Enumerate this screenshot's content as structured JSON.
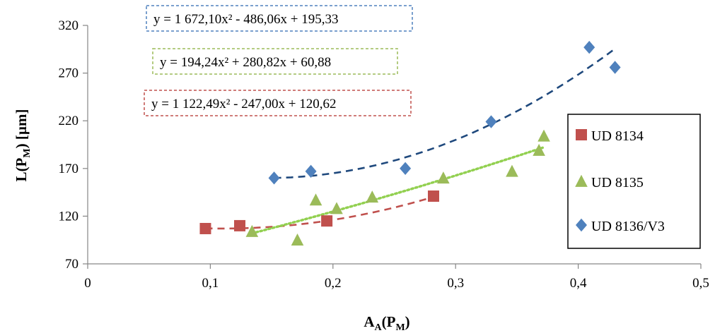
{
  "chart_data": {
    "type": "scatter",
    "xlabel": "AA(PM)",
    "ylabel": "L(PM) [µm]",
    "xlim": [
      0,
      0.5
    ],
    "ylim": [
      70,
      320
    ],
    "xticks": [
      0,
      0.1,
      0.2,
      0.3,
      0.4,
      0.5
    ],
    "xtick_labels": [
      "0",
      "0,1",
      "0,2",
      "0,3",
      "0,4",
      "0,5"
    ],
    "yticks": [
      70,
      120,
      170,
      220,
      270,
      320
    ],
    "ytick_labels": [
      "70",
      "120",
      "170",
      "220",
      "270",
      "320"
    ],
    "grid": false,
    "legend_position": "right",
    "series": [
      {
        "name": "UD 8134",
        "marker": "square",
        "color": "#c0504d",
        "trend_color": "#c0504d",
        "trend_style": "dashed",
        "x": [
          0.096,
          0.124,
          0.195,
          0.282
        ],
        "y": [
          107,
          110,
          115,
          141
        ],
        "trend": {
          "a": 1122.49,
          "b": -247.0,
          "c": 120.62,
          "x_range": [
            0.096,
            0.282
          ]
        },
        "equation": "y = 1 122,49x² - 247,00x + 120,62"
      },
      {
        "name": "UD 8135",
        "marker": "triangle",
        "color": "#9bbb59",
        "trend_color": "#92d050",
        "trend_style": "dotted",
        "x": [
          0.134,
          0.171,
          0.186,
          0.203,
          0.232,
          0.29,
          0.346,
          0.368,
          0.372
        ],
        "y": [
          104,
          95,
          137,
          128,
          140,
          160,
          167,
          189,
          204
        ],
        "trend": {
          "a": 194.24,
          "b": 280.82,
          "c": 60.88,
          "x_range": [
            0.134,
            0.372
          ]
        },
        "equation": "y = 194,24x² + 280,82x + 60,88"
      },
      {
        "name": "UD 8136/V3",
        "marker": "diamond",
        "color": "#4f81bd",
        "trend_color": "#1f497d",
        "trend_style": "dashed",
        "x": [
          0.152,
          0.182,
          0.259,
          0.329,
          0.409,
          0.43
        ],
        "y": [
          160,
          167,
          170,
          219,
          297,
          276
        ],
        "trend": {
          "a": 1672.1,
          "b": -486.06,
          "c": 195.33,
          "x_range": [
            0.152,
            0.43
          ]
        },
        "equation": "y = 1 672,10x² - 486,06x + 195,33"
      }
    ],
    "equation_box_colors": [
      "#4f81bd",
      "#9bbb59",
      "#c0504d"
    ]
  }
}
